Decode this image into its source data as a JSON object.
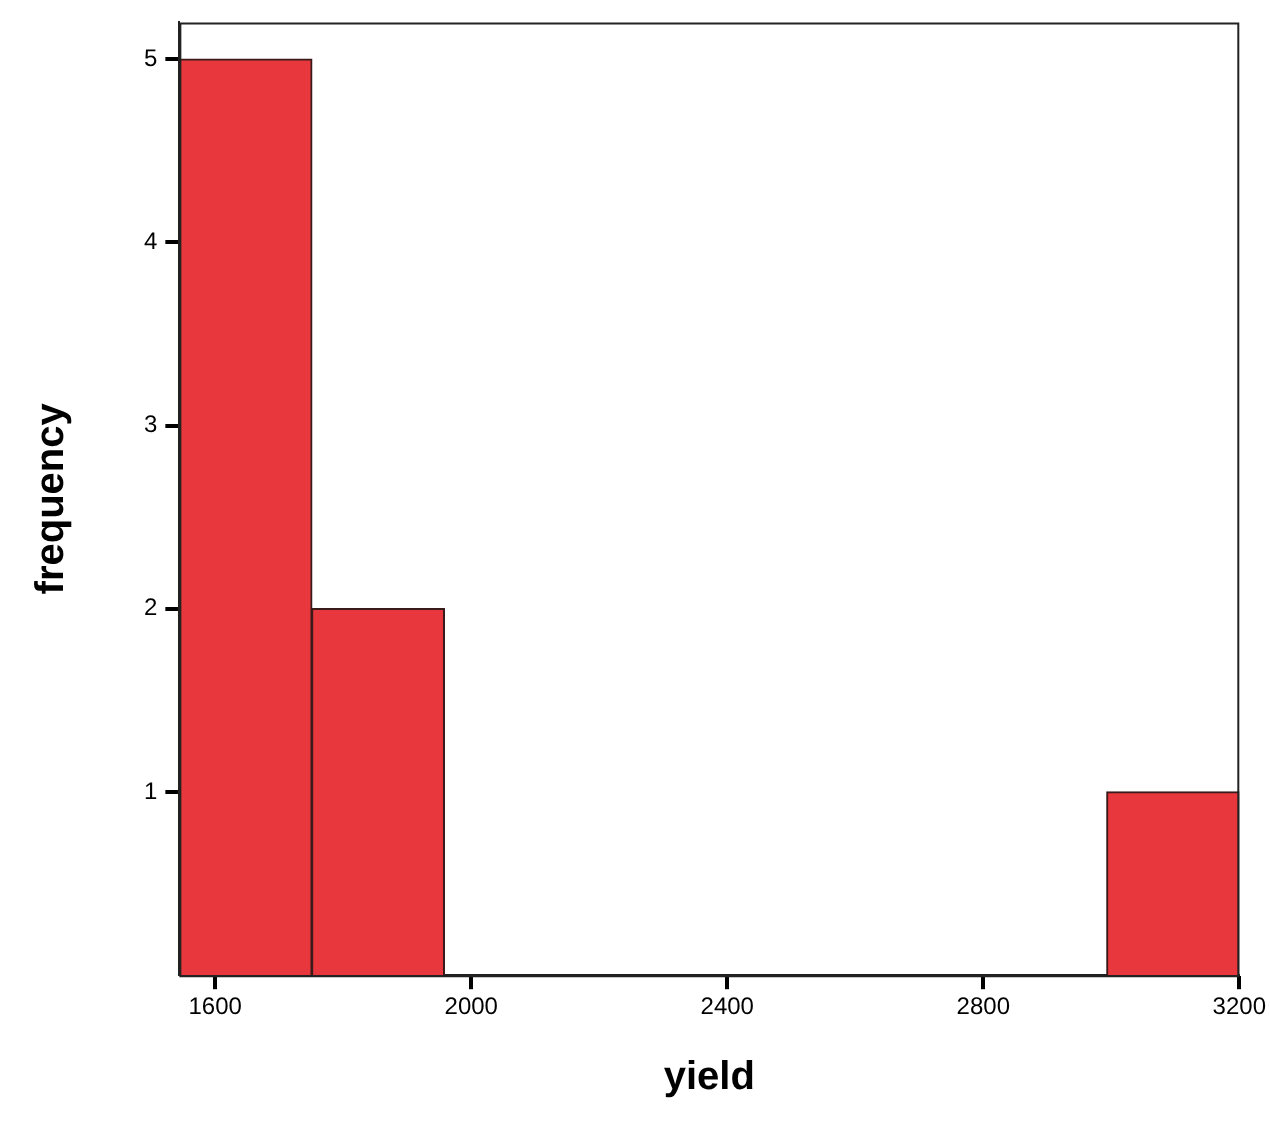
{
  "chart_data": {
    "type": "histogram",
    "xlabel": "yield",
    "ylabel": "frequency",
    "bins": [
      1544,
      1751,
      1958,
      2165,
      2372,
      2579,
      2786,
      2993,
      3200
    ],
    "values": [
      5,
      2,
      0,
      0,
      0,
      0,
      0,
      1
    ],
    "color": "#e8383d",
    "xlim": [
      1544,
      3200
    ],
    "xticks": [
      1600,
      2000,
      2400,
      2800,
      3200
    ],
    "ylim": [
      0,
      5.2
    ],
    "yticks": [
      1,
      2,
      3,
      4,
      5
    ],
    "grid": false,
    "legend": false
  }
}
